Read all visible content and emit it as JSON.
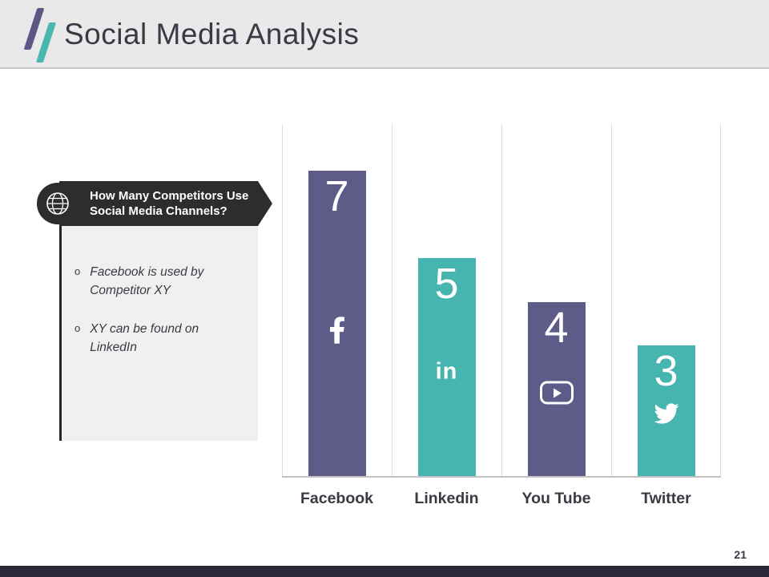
{
  "slide": {
    "title": "Social Media Analysis",
    "page_number": "21"
  },
  "callout": {
    "heading_line1": "How Many Competitors Use",
    "heading_line2": "Social Media Channels?",
    "bullets": [
      {
        "marker": "o",
        "text": "Facebook is used by Competitor XY"
      },
      {
        "marker": "o",
        "text": "XY can be found on LinkedIn"
      }
    ]
  },
  "chart_data": {
    "type": "bar",
    "categories": [
      "Facebook",
      "Linkedin",
      "You Tube",
      "Twitter"
    ],
    "values": [
      7,
      5,
      4,
      3
    ],
    "bar_colors": [
      "#5d5b88",
      "#46b5af",
      "#5d5b88",
      "#46b5af"
    ],
    "icons": [
      "facebook-icon",
      "linkedin-icon",
      "youtube-icon",
      "twitter-icon"
    ],
    "title": "",
    "xlabel": "",
    "ylabel": "",
    "ylim": [
      0,
      8
    ],
    "grid": "vertical-separators",
    "legend": "none"
  },
  "colors": {
    "purple": "#5d5b88",
    "teal": "#46b5af",
    "header_bg": "#e9e9e9",
    "callout_bg": "#2d2d2d",
    "panel_bg": "#f0f0f0",
    "footer_bg": "#29293a",
    "text_dark": "#3a3a44"
  }
}
